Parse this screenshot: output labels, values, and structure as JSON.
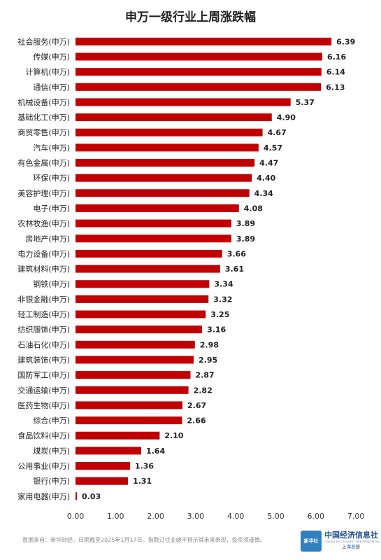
{
  "chart_data": {
    "type": "bar",
    "orientation": "horizontal",
    "title": "申万一级行业上周涨跌幅",
    "categories": [
      "社会服务(申万)",
      "传媒(申万)",
      "计算机(申万)",
      "通信(申万)",
      "机械设备(申万)",
      "基础化工(申万)",
      "商贸零售(申万)",
      "汽车(申万)",
      "有色金属(申万)",
      "环保(申万)",
      "美容护理(申万)",
      "电子(申万)",
      "农林牧渔(申万)",
      "房地产(申万)",
      "电力设备(申万)",
      "建筑材料(申万)",
      "钢铁(申万)",
      "非银金融(申万)",
      "轻工制造(申万)",
      "纺织服饰(申万)",
      "石油石化(申万)",
      "建筑装饰(申万)",
      "国防军工(申万)",
      "交通运输(申万)",
      "医药生物(申万)",
      "综合(申万)",
      "食品饮料(申万)",
      "煤炭(申万)",
      "公用事业(申万)",
      "银行(申万)",
      "家用电器(申万)"
    ],
    "values": [
      6.39,
      6.16,
      6.14,
      6.13,
      5.37,
      4.9,
      4.67,
      4.57,
      4.47,
      4.4,
      4.34,
      4.08,
      3.89,
      3.89,
      3.66,
      3.61,
      3.34,
      3.32,
      3.25,
      3.16,
      2.98,
      2.95,
      2.87,
      2.82,
      2.67,
      2.66,
      2.1,
      1.64,
      1.36,
      1.31,
      0.03
    ],
    "value_labels": [
      "6.39",
      "6.16",
      "6.14",
      "6.13",
      "5.37",
      "4.90",
      "4.67",
      "4.57",
      "4.47",
      "4.40",
      "4.34",
      "4.08",
      "3.89",
      "3.89",
      "3.66",
      "3.61",
      "3.34",
      "3.32",
      "3.25",
      "3.16",
      "2.98",
      "2.95",
      "2.87",
      "2.82",
      "2.67",
      "2.66",
      "2.10",
      "1.64",
      "1.36",
      "1.31",
      "0.03"
    ],
    "xlim": [
      0,
      7
    ],
    "xticks": [
      "0.00",
      "1.00",
      "2.00",
      "3.00",
      "4.00",
      "5.00",
      "6.00",
      "7.00"
    ],
    "grid": false,
    "bar_color": "#c00000"
  },
  "footer": {
    "source": "数据来自：新华财经。日期截至2025年1月17日。指数过往业绩不预示其未来表现，投资须谨慎。"
  },
  "logos": {
    "badge": "新华社",
    "org_name": "中国经济信息社",
    "org_name_en": "CHINA ECONOMIC INFORMATION SERVICE",
    "branch": "上海总部"
  }
}
